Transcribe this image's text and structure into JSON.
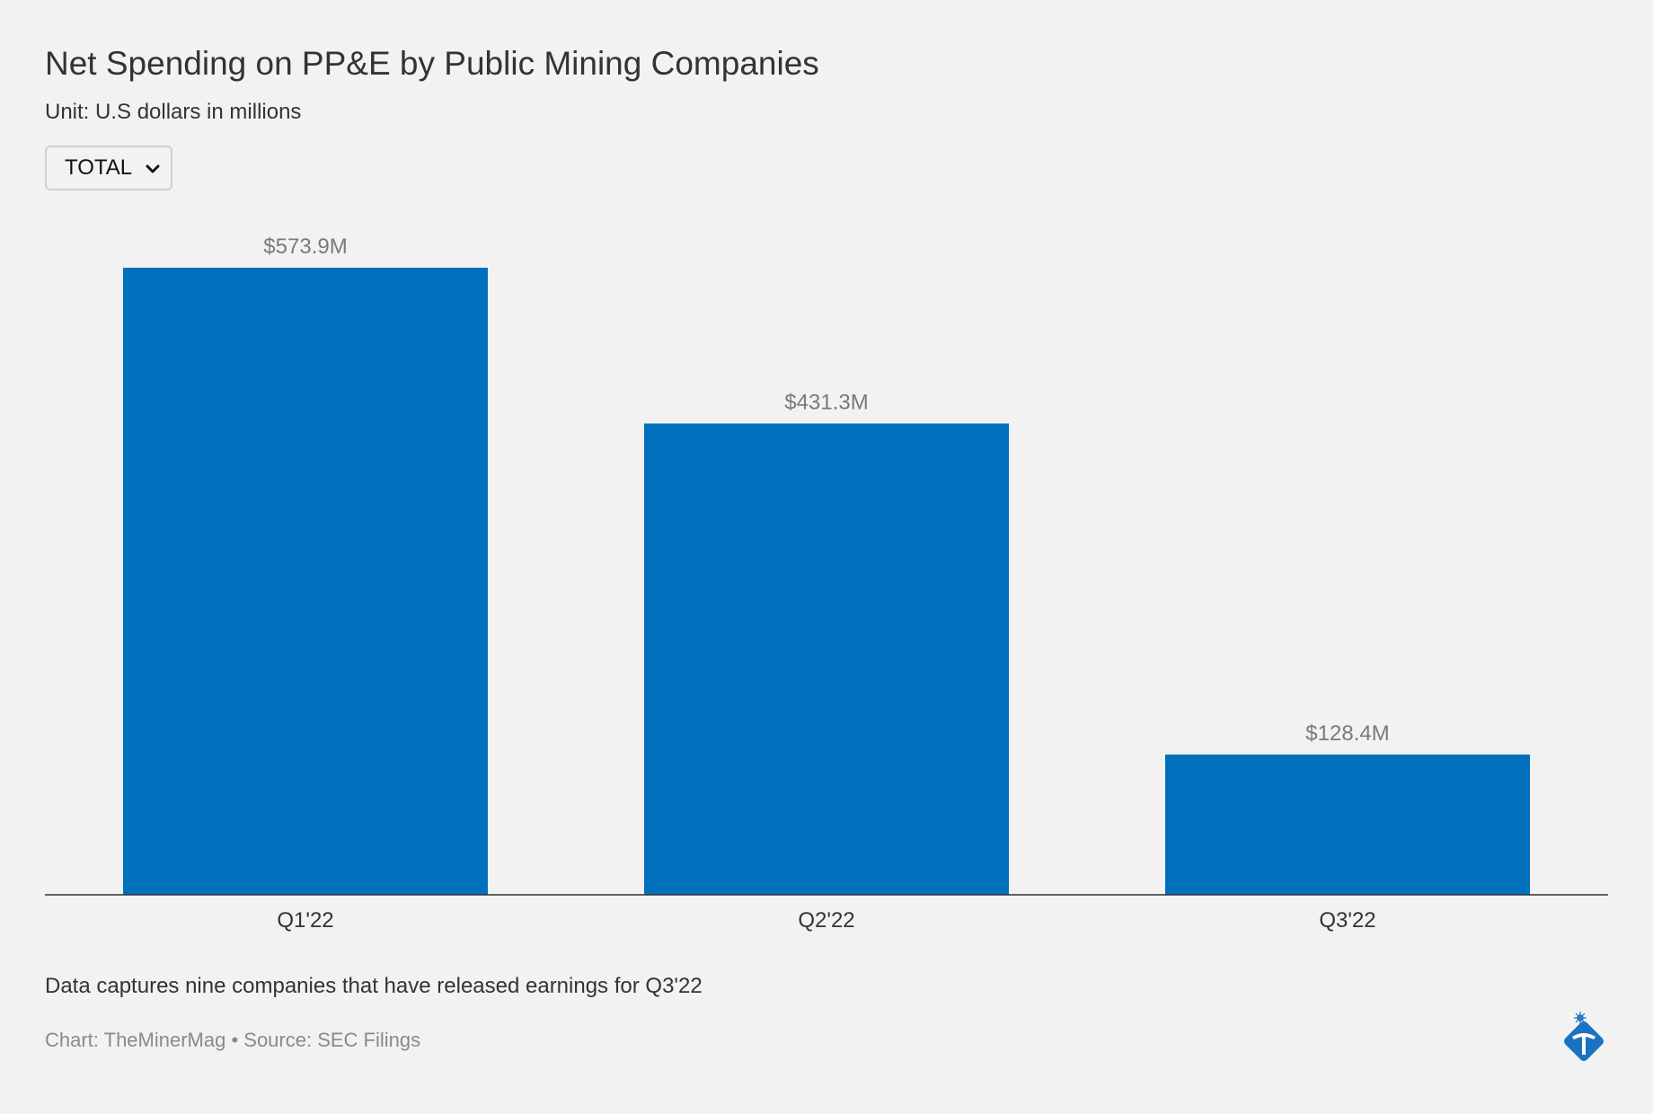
{
  "header": {
    "title": "Net Spending on PP&E by Public Mining Companies",
    "subtitle": "Unit: U.S dollars in millions"
  },
  "filter": {
    "selected": "TOTAL"
  },
  "chart_data": {
    "type": "bar",
    "title": "Net Spending on PP&E by Public Mining Companies",
    "subtitle": "Unit: U.S dollars in millions",
    "categories": [
      "Q1'22",
      "Q2'22",
      "Q3'22"
    ],
    "values": [
      573.9,
      431.3,
      128.4
    ],
    "data_labels": [
      "$573.9M",
      "$431.3M",
      "$128.4M"
    ],
    "ylim": [
      0,
      573.9
    ],
    "xlabel": "",
    "ylabel": "",
    "grid": false,
    "bar_color": "#0070bd"
  },
  "footer": {
    "note": "Data captures nine companies that have released earnings for Q3'22",
    "source": "Chart: TheMinerMag • Source: SEC Filings"
  },
  "icons": {
    "dropdown": "chevron-down-icon",
    "logo": "pickaxe-logo-icon"
  },
  "colors": {
    "background": "#f2f2f2",
    "bar": "#0070bd",
    "logo": "#1a73c2"
  }
}
